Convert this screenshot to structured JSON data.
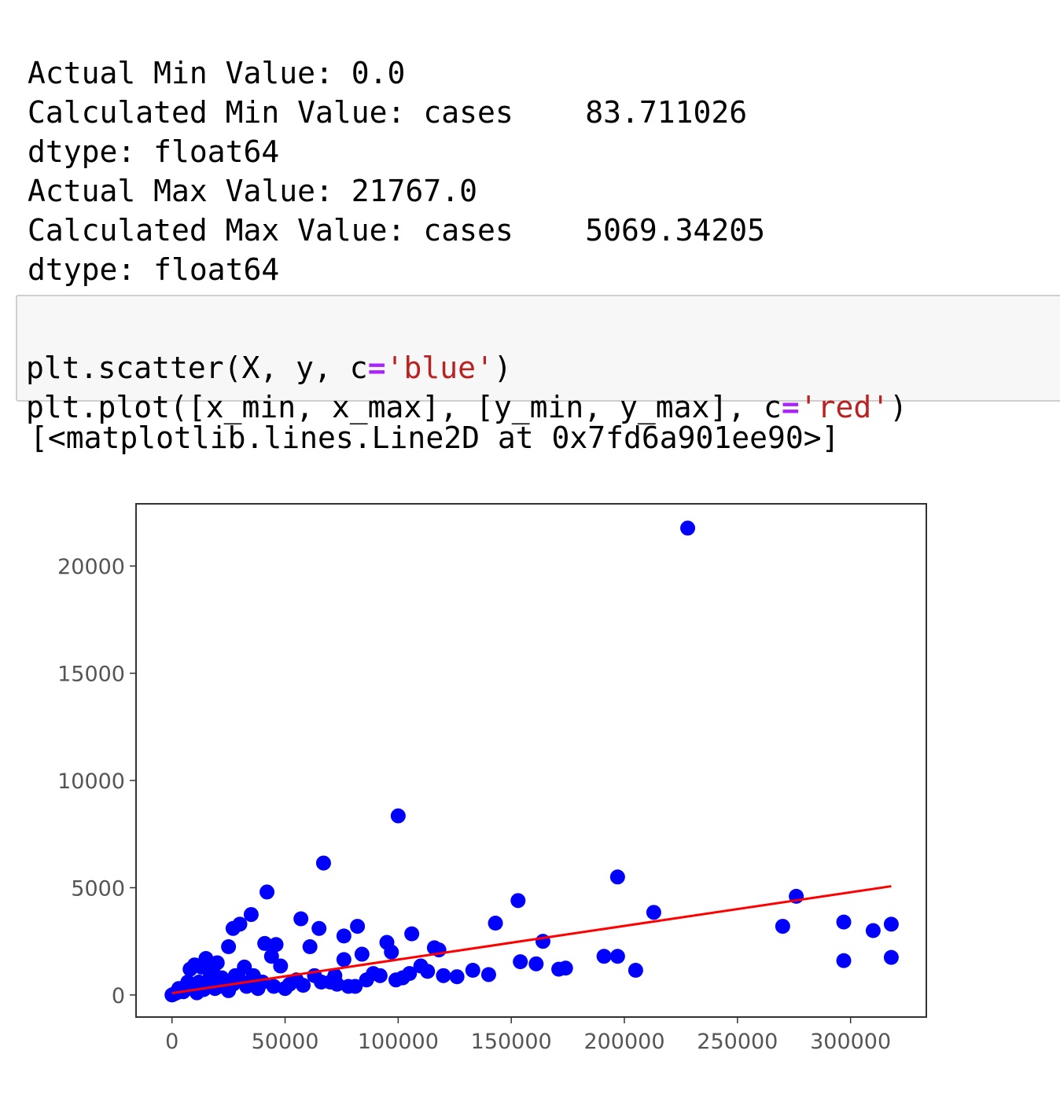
{
  "output_text": [
    "Actual Min Value: 0.0",
    "Calculated Min Value: cases    83.711026",
    "dtype: float64",
    "Actual Max Value: 21767.0",
    "Calculated Max Value: cases    5069.34205",
    "dtype: float64"
  ],
  "code": {
    "lines": [
      [
        "plt.scatter(X, y, c",
        "=",
        "'blue'",
        ")"
      ],
      [
        "plt.plot([x_min, x_max], [y_min, y_max], c",
        "=",
        "'red'",
        ")"
      ]
    ]
  },
  "result": "[<matplotlib.lines.Line2D at 0x7fd6a901ee90>]",
  "chart_data": {
    "type": "scatter",
    "series": [
      {
        "type": "scatter",
        "color": "blue",
        "x": [
          228000,
          100000,
          67000,
          197000,
          42000,
          153000,
          276000,
          213000,
          57000,
          35000,
          30000,
          27000,
          143000,
          270000,
          297000,
          318000,
          310000,
          164000,
          106000,
          82000,
          65000,
          76000,
          95000,
          41000,
          46000,
          61000,
          25000,
          118000,
          116000,
          97000,
          84000,
          76000,
          44000,
          48000,
          191000,
          197000,
          154000,
          161000,
          171000,
          174000,
          205000,
          297000,
          318000,
          140000,
          133000,
          126000,
          120000,
          110000,
          113000,
          89000,
          102000,
          99000,
          81000,
          73000,
          70000,
          63000,
          55000,
          52000,
          36000,
          32000,
          30000,
          20000,
          18000,
          15000,
          13000,
          10000,
          8000,
          22000,
          12000,
          6000,
          4000,
          2000,
          0,
          1000,
          3000,
          5000,
          7000,
          9000,
          11000,
          14000,
          16000,
          17000,
          19000,
          21000,
          23000,
          25000,
          27000,
          28000,
          33000,
          38000,
          40000,
          45000,
          50000,
          58000,
          66000,
          72000,
          78000,
          86000,
          92000,
          105000
        ],
        "y": [
          21767,
          8350,
          6150,
          5500,
          4800,
          4400,
          4600,
          3850,
          3550,
          3750,
          3300,
          3100,
          3350,
          3200,
          3400,
          3300,
          3000,
          2500,
          2850,
          3200,
          3100,
          2750,
          2450,
          2400,
          2350,
          2250,
          2250,
          2100,
          2200,
          2000,
          1900,
          1650,
          1800,
          1350,
          1800,
          1800,
          1550,
          1450,
          1200,
          1250,
          1150,
          1600,
          1750,
          950,
          1150,
          850,
          900,
          1350,
          1100,
          1000,
          800,
          700,
          400,
          500,
          600,
          900,
          700,
          500,
          900,
          1300,
          700,
          1500,
          1200,
          1700,
          1300,
          1400,
          1200,
          800,
          600,
          400,
          200,
          100,
          0,
          50,
          300,
          150,
          600,
          300,
          100,
          250,
          500,
          900,
          300,
          400,
          600,
          200,
          500,
          900,
          400,
          300,
          600,
          400,
          300,
          450,
          600,
          900,
          400,
          700,
          900,
          1000
        ]
      },
      {
        "type": "line",
        "color": "red",
        "x": [
          0,
          318000
        ],
        "y": [
          83.711026,
          5069.34205
        ]
      }
    ],
    "xlim": [
      -15900,
      333500
    ],
    "ylim": [
      -1030,
      22900
    ],
    "xticks": [
      0,
      50000,
      100000,
      150000,
      200000,
      250000,
      300000
    ],
    "yticks": [
      0,
      5000,
      10000,
      15000,
      20000
    ]
  }
}
